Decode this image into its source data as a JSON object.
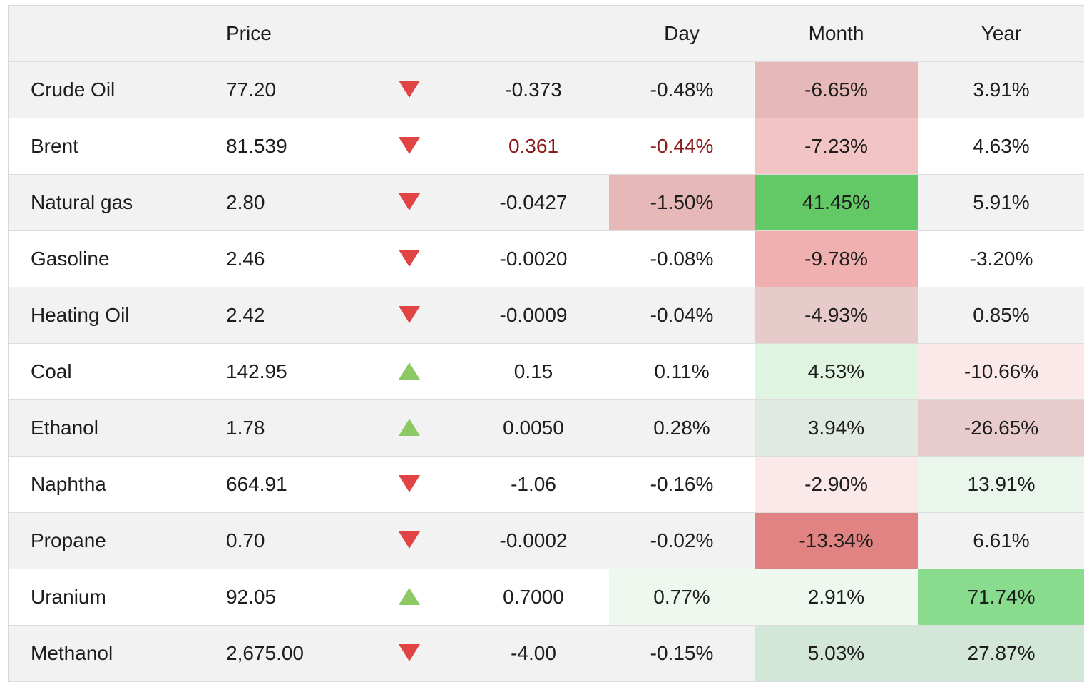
{
  "columns": {
    "name": "",
    "price": "Price",
    "arrow": "",
    "change": "",
    "day": "Day",
    "month": "Month",
    "year": "Year"
  },
  "colors": {
    "down_arrow": "#e04444",
    "up_arrow": "#8cc964",
    "red_text": "#8b1a1a"
  },
  "rows": [
    {
      "name": "Crude Oil",
      "price": "77.20",
      "direction": "down",
      "change": "-0.373",
      "day": "-0.48%",
      "month": "-6.65%",
      "year": "3.91%",
      "day_bg": "",
      "month_bg": "#e6b8b8",
      "year_bg": "",
      "change_red": false
    },
    {
      "name": "Brent",
      "price": "81.539",
      "direction": "down",
      "change": "0.361",
      "day": "-0.44%",
      "month": "-7.23%",
      "year": "4.63%",
      "day_bg": "",
      "month_bg": "#f3c4c4",
      "year_bg": "",
      "change_red": true
    },
    {
      "name": "Natural gas",
      "price": "2.80",
      "direction": "down",
      "change": "-0.0427",
      "day": "-1.50%",
      "month": "41.45%",
      "year": "5.91%",
      "day_bg": "#e6b8b8",
      "month_bg": "#63c866",
      "year_bg": "",
      "change_red": false
    },
    {
      "name": "Gasoline",
      "price": "2.46",
      "direction": "down",
      "change": "-0.0020",
      "day": "-0.08%",
      "month": "-9.78%",
      "year": "-3.20%",
      "day_bg": "",
      "month_bg": "#f1b0b0",
      "year_bg": "",
      "change_red": false
    },
    {
      "name": "Heating Oil",
      "price": "2.42",
      "direction": "down",
      "change": "-0.0009",
      "day": "-0.04%",
      "month": "-4.93%",
      "year": "0.85%",
      "day_bg": "",
      "month_bg": "#e7cbcb",
      "year_bg": "",
      "change_red": false
    },
    {
      "name": "Coal",
      "price": "142.95",
      "direction": "up",
      "change": "0.15",
      "day": "0.11%",
      "month": "4.53%",
      "year": "-10.66%",
      "day_bg": "",
      "month_bg": "#dff5e2",
      "year_bg": "#fbe9e9",
      "change_red": false
    },
    {
      "name": "Ethanol",
      "price": "1.78",
      "direction": "up",
      "change": "0.0050",
      "day": "0.28%",
      "month": "3.94%",
      "year": "-26.65%",
      "day_bg": "",
      "month_bg": "#e0eae2",
      "year_bg": "#e7cbcd",
      "change_red": false
    },
    {
      "name": "Naphtha",
      "price": "664.91",
      "direction": "down",
      "change": "-1.06",
      "day": "-0.16%",
      "month": "-2.90%",
      "year": "13.91%",
      "day_bg": "",
      "month_bg": "#fbe9e9",
      "year_bg": "#eaf5ec",
      "change_red": false
    },
    {
      "name": "Propane",
      "price": "0.70",
      "direction": "down",
      "change": "-0.0002",
      "day": "-0.02%",
      "month": "-13.34%",
      "year": "6.61%",
      "day_bg": "",
      "month_bg": "#e28383",
      "year_bg": "",
      "change_red": false
    },
    {
      "name": "Uranium",
      "price": "92.05",
      "direction": "up",
      "change": "0.7000",
      "day": "0.77%",
      "month": "2.91%",
      "year": "71.74%",
      "day_bg": "#eef8ef",
      "month_bg": "#eef8ef",
      "year_bg": "#89dc8e",
      "change_red": false
    },
    {
      "name": "Methanol",
      "price": "2,675.00",
      "direction": "down",
      "change": "-4.00",
      "day": "-0.15%",
      "month": "5.03%",
      "year": "27.87%",
      "day_bg": "",
      "month_bg": "#d3e7d8",
      "year_bg": "#d3e7d8",
      "change_red": false
    }
  ]
}
